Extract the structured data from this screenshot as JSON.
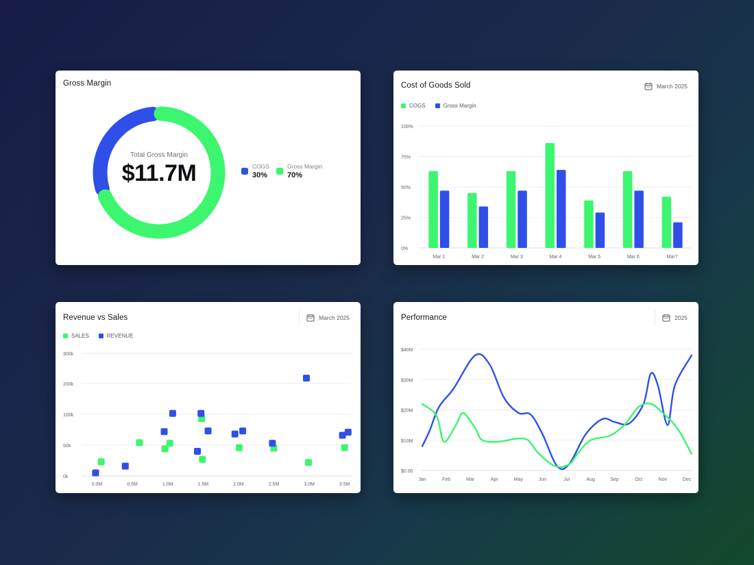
{
  "colors": {
    "green": "#3cf66f",
    "blue": "#2f4fe8",
    "grid": "#eceef2",
    "axis": "#5e6370"
  },
  "gross_margin": {
    "title": "Gross Margin",
    "center_label": "Total Gross Margin",
    "center_value": "$11.7M",
    "legend": [
      {
        "name": "COGS",
        "pct": "30%",
        "color": "#2f4fe8"
      },
      {
        "name": "Gross Margin",
        "pct": "70%",
        "color": "#3cf66f"
      }
    ]
  },
  "cogs": {
    "title": "Cost of Goods Sold",
    "date": "March 2025",
    "date_icon": "calendar-icon"
  },
  "revenue_sales": {
    "title": "Revenue vs Sales",
    "date": "March 2025",
    "date_icon": "calendar-icon"
  },
  "performance": {
    "title": "Performance",
    "date": "2025",
    "date_icon": "calendar-icon"
  },
  "chart_data": [
    {
      "type": "pie",
      "title": "Gross Margin",
      "donut": true,
      "labels": [
        "COGS",
        "Gross Margin"
      ],
      "values": [
        30,
        70
      ]
    },
    {
      "type": "bar",
      "title": "Cost of Goods Sold",
      "categories": [
        "Mar 1",
        "Mar 2",
        "Mar 3",
        "Mar 4",
        "Mar 5",
        "Mar 6",
        "Mar7"
      ],
      "series": [
        {
          "name": "COGS",
          "values": [
            63,
            45,
            63,
            86,
            39,
            63,
            42
          ]
        },
        {
          "name": "Gross Margin",
          "values": [
            47,
            34,
            47,
            64,
            29,
            47,
            21
          ]
        }
      ],
      "yticks": [
        "0%",
        "25%",
        "50%",
        "75%",
        "100%"
      ],
      "ylim": [
        0,
        100
      ],
      "legend": "top-left",
      "grid": true
    },
    {
      "type": "scatter",
      "title": "Revenue vs Sales",
      "xticks": [
        "0.0M",
        "0.5M",
        "1.0M",
        "1.5M",
        "2.0M",
        "2.5M",
        "3.0M",
        "3.5M"
      ],
      "yticks": [
        "0k",
        "50k",
        "100k",
        "200k",
        "300k"
      ],
      "xlim": [
        -0.1,
        3.6
      ],
      "series": [
        {
          "name": "SALES",
          "points": [
            [
              0.06,
              23
            ],
            [
              0.6,
              54
            ],
            [
              0.96,
              44
            ],
            [
              1.03,
              53
            ],
            [
              1.48,
              93
            ],
            [
              1.49,
              27
            ],
            [
              2.01,
              46
            ],
            [
              2.5,
              45
            ],
            [
              2.99,
              22
            ],
            [
              3.5,
              46
            ]
          ]
        },
        {
          "name": "REVENUE",
          "points": [
            [
              -0.02,
              5
            ],
            [
              0.4,
              16
            ],
            [
              0.95,
              72
            ],
            [
              1.07,
              103
            ],
            [
              1.42,
              40
            ],
            [
              1.47,
              103
            ],
            [
              1.57,
              73
            ],
            [
              1.95,
              68
            ],
            [
              2.06,
              73
            ],
            [
              2.48,
              53
            ],
            [
              2.96,
              218
            ],
            [
              3.47,
              66
            ],
            [
              3.55,
              71
            ]
          ]
        }
      ],
      "legend": "top-left",
      "grid": true
    },
    {
      "type": "line",
      "title": "Performance",
      "categories": [
        "Jan",
        "Feb",
        "Mar",
        "Apr",
        "May",
        "Jun",
        "Jul",
        "Aug",
        "Sep",
        "Oct",
        "Nov",
        "Dec"
      ],
      "yticks": [
        "$0.00",
        "$10M",
        "$20M",
        "$30M",
        "$40M"
      ],
      "ylim": [
        0,
        40
      ],
      "series": [
        {
          "color": "#2f4fe8",
          "values": [
            [
              0,
              8
            ],
            [
              0.3,
              13
            ],
            [
              0.7,
              21
            ],
            [
              1.3,
              27
            ],
            [
              2.2,
              38
            ],
            [
              2.8,
              35
            ],
            [
              3.4,
              24
            ],
            [
              4.0,
              19
            ],
            [
              4.5,
              18.5
            ],
            [
              5.0,
              12
            ],
            [
              5.6,
              1.5
            ],
            [
              6.1,
              2
            ],
            [
              6.8,
              12
            ],
            [
              7.5,
              17
            ],
            [
              8.0,
              16
            ],
            [
              8.6,
              15.5
            ],
            [
              9.2,
              22
            ],
            [
              9.5,
              32
            ],
            [
              9.8,
              28
            ],
            [
              10.2,
              15
            ],
            [
              10.5,
              28
            ],
            [
              11.2,
              38
            ]
          ]
        },
        {
          "color": "#3cf66f",
          "values": [
            [
              0,
              22
            ],
            [
              0.6,
              18
            ],
            [
              0.9,
              9.5
            ],
            [
              1.4,
              15
            ],
            [
              1.7,
              19
            ],
            [
              2.2,
              14
            ],
            [
              2.5,
              10
            ],
            [
              3.2,
              9.5
            ],
            [
              3.9,
              10.5
            ],
            [
              4.4,
              10
            ],
            [
              4.8,
              6
            ],
            [
              5.5,
              1.5
            ],
            [
              6.1,
              2
            ],
            [
              6.5,
              6
            ],
            [
              7.0,
              10
            ],
            [
              7.8,
              11.5
            ],
            [
              8.4,
              15
            ],
            [
              9.0,
              21
            ],
            [
              9.5,
              22
            ],
            [
              10.0,
              19
            ],
            [
              10.6,
              14
            ],
            [
              11.2,
              5.5
            ]
          ]
        }
      ],
      "grid": true
    }
  ]
}
